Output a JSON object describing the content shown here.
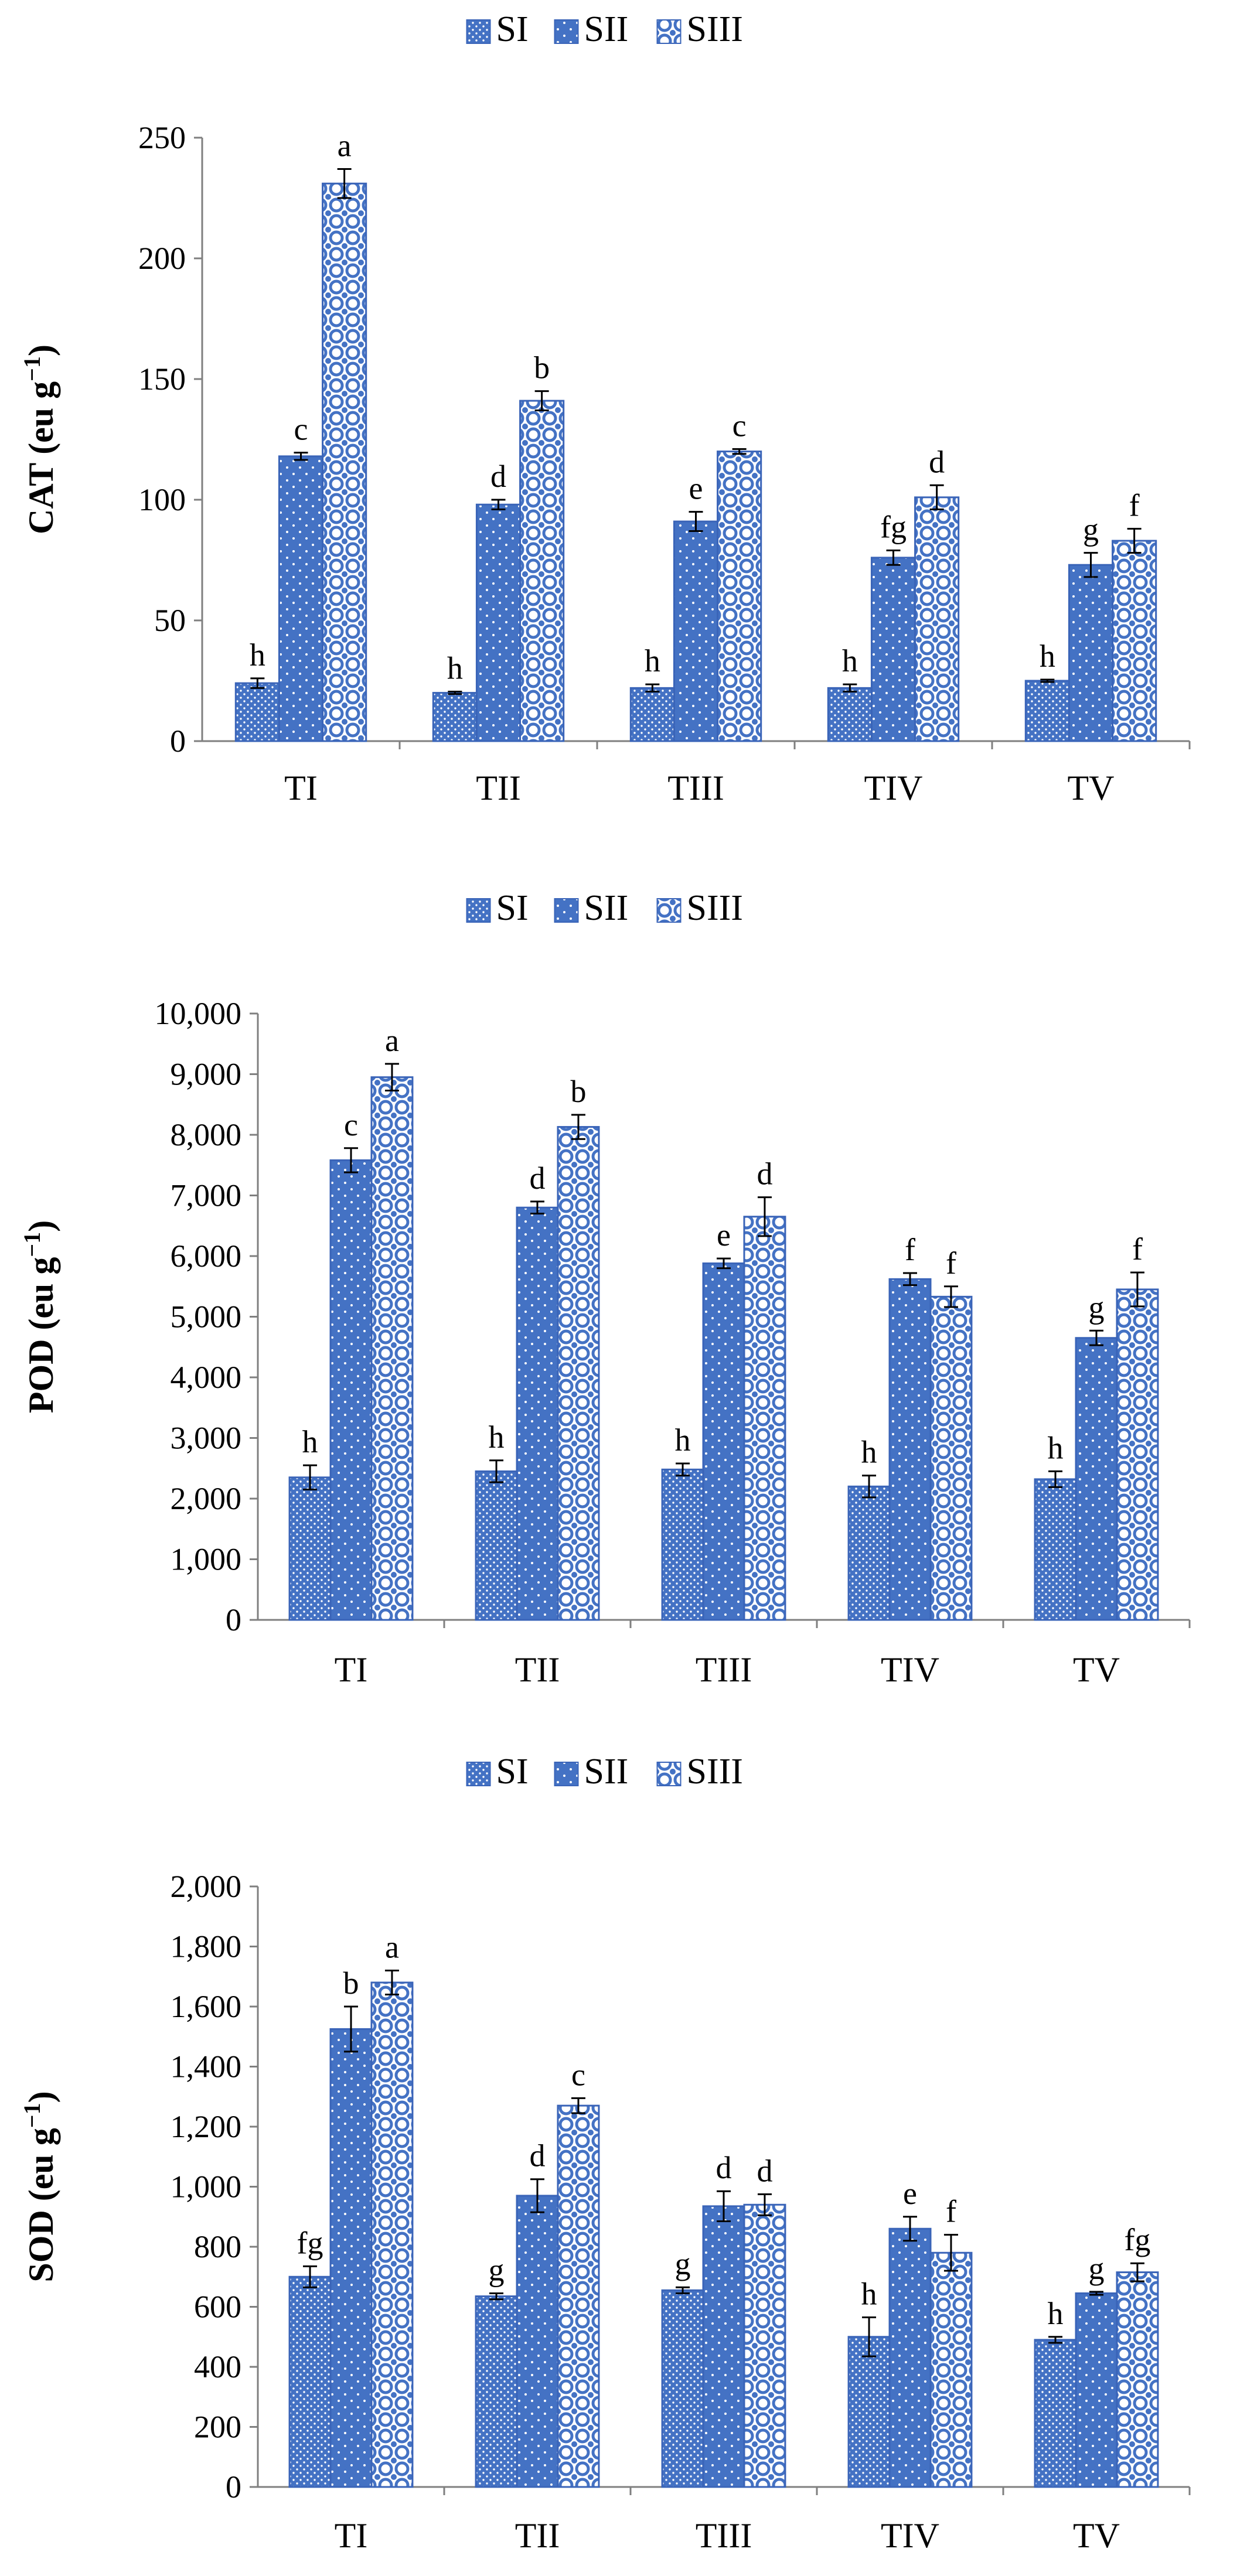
{
  "figure": {
    "background": "#ffffff"
  },
  "colors": {
    "bar": "#4472c4",
    "edge": "#3a64b8",
    "axis": "#7f7f7f"
  },
  "legend": [
    "SI",
    "SII",
    "SIII"
  ],
  "chart_data": [
    {
      "type": "bar",
      "title": "",
      "ylabel": "CAT (eu g",
      "ylabel_sup": "−1",
      "ylabel_close": ")",
      "xlabel": "",
      "categories": [
        "TI",
        "TII",
        "TIII",
        "TIV",
        "TV"
      ],
      "ylim": [
        0,
        250
      ],
      "yticks": [
        0,
        50,
        100,
        150,
        200,
        250
      ],
      "ytick_labels": [
        "0",
        "50",
        "100",
        "150",
        "200",
        "250"
      ],
      "legend_placement": "top-center",
      "grid": false,
      "series": [
        {
          "name": "SI",
          "values": [
            24,
            20,
            22,
            22,
            25
          ],
          "errors": [
            2,
            0.5,
            1.5,
            1.5,
            0.5
          ],
          "letters": [
            "h",
            "h",
            "h",
            "h",
            "h"
          ]
        },
        {
          "name": "SII",
          "values": [
            118,
            98,
            91,
            76,
            73
          ],
          "errors": [
            1.5,
            2,
            4,
            3,
            5
          ],
          "letters": [
            "c",
            "d",
            "e",
            "fg",
            "g"
          ]
        },
        {
          "name": "SIII",
          "values": [
            231,
            141,
            120,
            101,
            83
          ],
          "errors": [
            6,
            4,
            1,
            5,
            5
          ],
          "letters": [
            "a",
            "b",
            "c",
            "d",
            "f"
          ]
        }
      ]
    },
    {
      "type": "bar",
      "title": "",
      "ylabel": "POD (eu g",
      "ylabel_sup": "−1",
      "ylabel_close": ")",
      "xlabel": "",
      "categories": [
        "TI",
        "TII",
        "TIII",
        "TIV",
        "TV"
      ],
      "ylim": [
        0,
        10000
      ],
      "yticks": [
        0,
        1000,
        2000,
        3000,
        4000,
        5000,
        6000,
        7000,
        8000,
        9000,
        10000
      ],
      "ytick_labels": [
        "0",
        "1,000",
        "2,000",
        "3,000",
        "4,000",
        "5,000",
        "6,000",
        "7,000",
        "8,000",
        "9,000",
        "10,000"
      ],
      "legend_placement": "top-center",
      "grid": false,
      "series": [
        {
          "name": "SI",
          "values": [
            2350,
            2450,
            2480,
            2200,
            2320
          ],
          "errors": [
            200,
            180,
            100,
            180,
            130
          ],
          "letters": [
            "h",
            "h",
            "h",
            "h",
            "h"
          ]
        },
        {
          "name": "SII",
          "values": [
            7580,
            6800,
            5880,
            5620,
            4650
          ],
          "errors": [
            200,
            100,
            80,
            100,
            120
          ],
          "letters": [
            "c",
            "d",
            "e",
            "f",
            "g"
          ]
        },
        {
          "name": "SIII",
          "values": [
            8950,
            8130,
            6650,
            5330,
            5450
          ],
          "errors": [
            220,
            200,
            320,
            170,
            280
          ],
          "letters": [
            "a",
            "b",
            "d",
            "f",
            "f"
          ]
        }
      ]
    },
    {
      "type": "bar",
      "title": "",
      "ylabel": "SOD (eu g",
      "ylabel_sup": "−1",
      "ylabel_close": ")",
      "xlabel": "",
      "categories": [
        "TI",
        "TII",
        "TIII",
        "TIV",
        "TV"
      ],
      "ylim": [
        0,
        2000
      ],
      "yticks": [
        0,
        200,
        400,
        600,
        800,
        1000,
        1200,
        1400,
        1600,
        1800,
        2000
      ],
      "ytick_labels": [
        "0",
        "200",
        "400",
        "600",
        "800",
        "1,000",
        "1,200",
        "1,400",
        "1,600",
        "1,800",
        "2,000"
      ],
      "legend_placement": "top-center",
      "grid": false,
      "series": [
        {
          "name": "SI",
          "values": [
            700,
            635,
            655,
            500,
            490
          ],
          "errors": [
            35,
            10,
            10,
            65,
            10
          ],
          "letters": [
            "fg",
            "g",
            "g",
            "h",
            "h"
          ]
        },
        {
          "name": "SII",
          "values": [
            1525,
            970,
            935,
            860,
            645
          ],
          "errors": [
            75,
            55,
            50,
            40,
            5
          ],
          "letters": [
            "b",
            "d",
            "d",
            "e",
            "g"
          ]
        },
        {
          "name": "SIII",
          "values": [
            1680,
            1270,
            940,
            780,
            715
          ],
          "errors": [
            40,
            25,
            35,
            60,
            30
          ],
          "letters": [
            "a",
            "c",
            "d",
            "f",
            "fg"
          ]
        }
      ]
    }
  ]
}
